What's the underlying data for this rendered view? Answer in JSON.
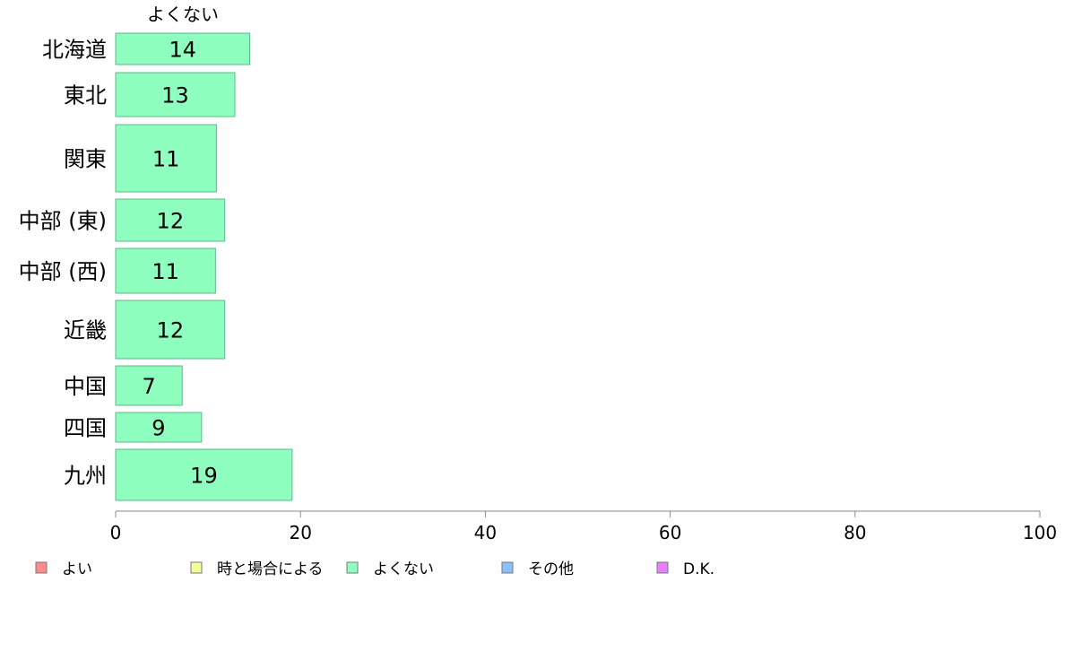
{
  "chart_data": {
    "type": "bar",
    "orientation": "horizontal",
    "series_title": "よくない",
    "categories": [
      "北海道",
      "東北",
      "関東",
      "中部 (東)",
      "中部 (西)",
      "近畿",
      "中国",
      "四国",
      "九州"
    ],
    "series": [
      {
        "name": "よくない",
        "color": "#8fffbf",
        "values": [
          14.5,
          12.9,
          10.9,
          11.8,
          10.8,
          11.8,
          7.2,
          9.3,
          19.1
        ],
        "labels": [
          "14",
          "13",
          "11",
          "12",
          "11",
          "12",
          "7",
          "9",
          "19"
        ]
      }
    ],
    "xlim": [
      0,
      100
    ],
    "xticks": [
      "0",
      "20",
      "40",
      "60",
      "80",
      "100"
    ],
    "grid": false,
    "legend": {
      "placement": "bottom",
      "items": [
        {
          "label": "よい",
          "color": "#ff8c8c"
        },
        {
          "label": "時と場合による",
          "color": "#f2ff99"
        },
        {
          "label": "よくない",
          "color": "#8fffbf"
        },
        {
          "label": "その他",
          "color": "#8cbfff"
        },
        {
          "label": "D.K.",
          "color": "#e680ff"
        }
      ]
    }
  }
}
